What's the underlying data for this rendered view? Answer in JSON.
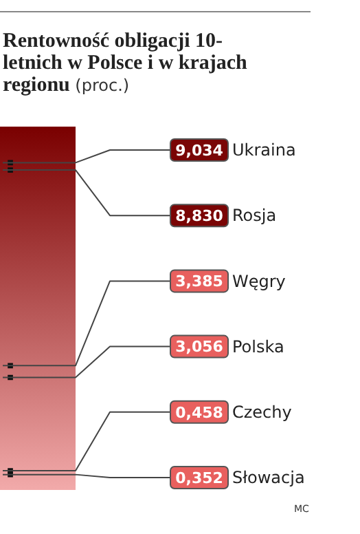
{
  "chart_data": {
    "type": "other",
    "title": "Rentowność obligacji 10-letnich w Polsce i w krajach regionu",
    "subtitle": "(proc.)",
    "categories": [
      "Ukraina",
      "Rosja",
      "Węgry",
      "Polska",
      "Czechy",
      "Słowacja"
    ],
    "values": [
      9.034,
      8.83,
      3.385,
      3.056,
      0.458,
      0.352
    ],
    "value_labels": [
      "9,034",
      "8,830",
      "3,385",
      "3,056",
      "0,458",
      "0,352"
    ],
    "colors": [
      "#7a0505",
      "#7a0505",
      "#e8605e",
      "#e8605e",
      "#e8605e",
      "#e8605e"
    ],
    "annotations": [
      "MC"
    ]
  }
}
